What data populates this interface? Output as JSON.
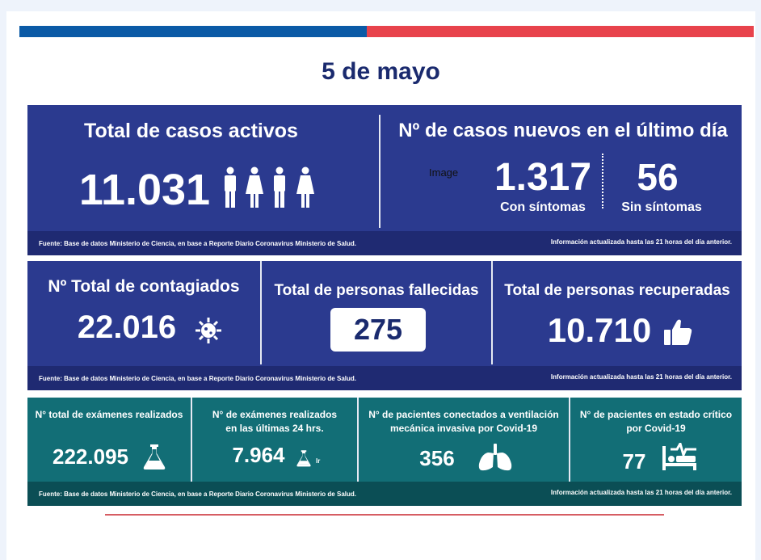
{
  "title": "5 de mayo",
  "colors": {
    "flag_blue": "#0b5aa6",
    "flag_red": "#e8434c",
    "panel_blue": "#2b3a8f",
    "panel_teal": "#126e76"
  },
  "top": {
    "activos": {
      "label": "Total de casos activos",
      "value": "11.031",
      "icon": "people-icon"
    },
    "nuevos": {
      "label": "Nº de casos nuevos en el último día",
      "image_text": "Image",
      "con_sintomas_value": "1.317",
      "con_sintomas_label": "Con síntomas",
      "sin_sintomas_value": "56",
      "sin_sintomas_label": "Sin síntomas"
    },
    "fuente": "Fuente: Base de datos Ministerio de Ciencia, en base a Reporte Diario Coronavirus Ministerio de Salud.",
    "actualizada": "Información actualizada hasta las 21 horas  del día anterior."
  },
  "middle": {
    "contagiados": {
      "label": "Nº Total de contagiados",
      "value": "22.016",
      "icon": "virus-icon"
    },
    "fallecidas": {
      "label": "Total de personas fallecidas",
      "value": "275"
    },
    "recuperadas": {
      "label": "Total de personas recuperadas",
      "value": "10.710",
      "icon": "thumbs-up-icon"
    },
    "fuente": "Fuente: Base de datos Ministerio de Ciencia, en base a Reporte Diario Coronavirus Ministerio de Salud.",
    "actualizada": "Información actualizada hasta las 21 horas  del día anterior."
  },
  "bottom": {
    "examenes": {
      "label": "N° total de exámenes realizados",
      "value": "222.095",
      "icon": "flask-icon"
    },
    "examenes24": {
      "label_line1": "N° de exámenes realizados",
      "label_line2": "en las últimas 24 hrs.",
      "value": "7.964",
      "icon_suffix": "lr",
      "icon": "flask-icon"
    },
    "ventilacion": {
      "label_line1": "N° de pacientes conectados a ventilación",
      "label_line2": "mecánica invasiva por Covid-19",
      "value": "356",
      "icon": "lungs-icon"
    },
    "critico": {
      "label_line1": "N° de pacientes en estado crítico",
      "label_line2": "por Covid-19",
      "value": "77",
      "icon": "hospital-bed-icon"
    },
    "fuente": "Fuente: Base de datos Ministerio de Ciencia, en base a Reporte Diario Coronavirus Ministerio de Salud.",
    "actualizada": "Información actualizada hasta las 21 horas  del día anterior."
  }
}
